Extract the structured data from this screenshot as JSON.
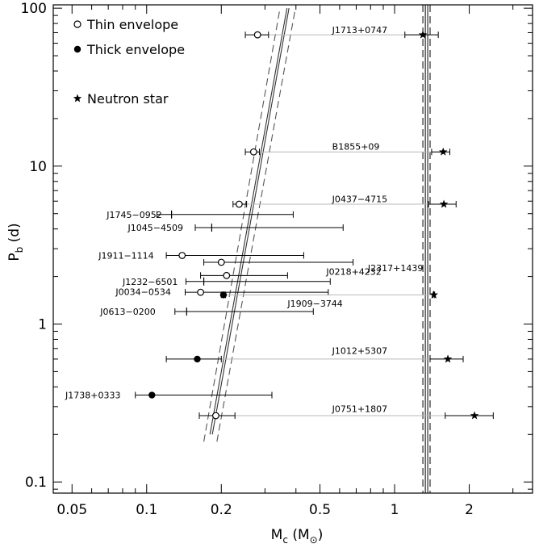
{
  "chart_data": {
    "type": "scatter",
    "xscale": "log",
    "yscale": "log",
    "xlim": [
      0.042,
      3.6
    ],
    "ylim": [
      0.085,
      105
    ],
    "xlabel": {
      "main": "M",
      "sub": "c",
      "unit_open": "(M",
      "unit_sub": "⊙",
      "unit_close": ")"
    },
    "ylabel": {
      "main": "P",
      "sub": "b",
      "unit": "(d)"
    },
    "xticks": [
      {
        "value": 0.05,
        "label": "0.05"
      },
      {
        "value": 0.1,
        "label": "0.1"
      },
      {
        "value": 0.2,
        "label": "0.2"
      },
      {
        "value": 0.5,
        "label": "0.5"
      },
      {
        "value": 1,
        "label": "1"
      },
      {
        "value": 2,
        "label": "2"
      }
    ],
    "yticks": [
      {
        "value": 0.1,
        "label": "0.1"
      },
      {
        "value": 1,
        "label": "1"
      },
      {
        "value": 10,
        "label": "10"
      },
      {
        "value": 100,
        "label": "100"
      }
    ],
    "legend": [
      {
        "symbol": "open-circle",
        "label": "Thin envelope"
      },
      {
        "symbol": "filled-circle",
        "label": "Thick envelope"
      },
      {
        "symbol": "star",
        "label": "Neutron star"
      }
    ],
    "relation_curves": [
      {
        "style": "solid",
        "points": [
          [
            0.18,
            0.2
          ],
          [
            0.368,
            100
          ]
        ]
      },
      {
        "style": "solid",
        "points": [
          [
            0.184,
            0.2
          ],
          [
            0.375,
            100
          ]
        ]
      },
      {
        "style": "dashed",
        "points": [
          [
            0.17,
            0.18
          ],
          [
            0.345,
            100
          ]
        ]
      },
      {
        "style": "dashed",
        "points": [
          [
            0.192,
            0.18
          ],
          [
            0.398,
            100
          ]
        ]
      }
    ],
    "ns_mass_lines": [
      {
        "style": "solid",
        "value": 1.33
      },
      {
        "style": "solid",
        "value": 1.36
      },
      {
        "style": "dashed",
        "value": 1.3
      },
      {
        "style": "dashed",
        "value": 1.39
      }
    ],
    "systems": [
      {
        "name": "J1713+0747",
        "pb": 67.8,
        "mc": 0.28,
        "mc_err": [
          0.25,
          0.31
        ],
        "marker": "open-circle",
        "ns_mass": 1.3,
        "ns_err": [
          1.1,
          1.5
        ],
        "label_mc": 0.56,
        "label_pb": 73
      },
      {
        "name": "B1855+09",
        "pb": 12.3,
        "mc": 0.27,
        "mc_err": [
          0.25,
          0.285
        ],
        "marker": "open-circle",
        "ns_mass": 1.57,
        "ns_err": [
          1.41,
          1.67
        ],
        "label_mc": 0.56,
        "label_pb": 13.3
      },
      {
        "name": "J0437−4715",
        "pb": 5.74,
        "mc": 0.236,
        "mc_err": [
          0.223,
          0.253
        ],
        "marker": "open-circle",
        "ns_mass": 1.58,
        "ns_err": [
          1.37,
          1.77
        ],
        "label_mc": 0.56,
        "label_pb": 6.2
      },
      {
        "name": "J1745−0952",
        "pb": 4.94,
        "mc": 0.126,
        "mc_err": [
          0.11,
          0.39
        ],
        "marker": "plus",
        "label_mc": 0.069,
        "label_pb": 4.94
      },
      {
        "name": "J1045−4509",
        "pb": 4.08,
        "mc": 0.183,
        "mc_err": [
          0.157,
          0.62
        ],
        "marker": "plus",
        "label_mc": 0.084,
        "label_pb": 4.08
      },
      {
        "name": "J1911−1114",
        "pb": 2.72,
        "mc": 0.139,
        "mc_err": [
          0.12,
          0.43
        ],
        "marker": "open-circle",
        "label_mc": 0.064,
        "label_pb": 2.72
      },
      {
        "name": "J2317+1439",
        "pb": 2.46,
        "mc": 0.2,
        "mc_err": [
          0.17,
          0.68
        ],
        "marker": "open-circle",
        "label_mc": 0.78,
        "label_pb": 2.27
      },
      {
        "name": "J0218+4232",
        "pb": 2.03,
        "mc": 0.21,
        "mc_err": [
          0.165,
          0.37
        ],
        "marker": "open-circle",
        "label_mc": 0.53,
        "label_pb": 2.15
      },
      {
        "name": "J1232−6501",
        "pb": 1.86,
        "mc": 0.17,
        "mc_err": [
          0.144,
          0.55
        ],
        "marker": "plus",
        "label_mc": 0.08,
        "label_pb": 1.86
      },
      {
        "name": "J0034−0534",
        "pb": 1.59,
        "mc": 0.165,
        "mc_err": [
          0.143,
          0.54
        ],
        "marker": "open-circle",
        "label_mc": 0.075,
        "label_pb": 1.6
      },
      {
        "name": "J1909−3744",
        "pb": 1.53,
        "mc": 0.204,
        "mc_err": [
          0.2,
          0.208
        ],
        "marker": "filled-circle",
        "ns_mass": 1.44,
        "ns_err": [
          1.43,
          1.45
        ],
        "label_mc": 0.37,
        "label_pb": 1.35
      },
      {
        "name": "J0613−0200",
        "pb": 1.2,
        "mc": 0.145,
        "mc_err": [
          0.13,
          0.47
        ],
        "marker": "plus",
        "label_mc": 0.065,
        "label_pb": 1.2
      },
      {
        "name": "J1012+5307",
        "pb": 0.6,
        "mc": 0.16,
        "mc_err": [
          0.12,
          0.2
        ],
        "marker": "filled-circle",
        "ns_mass": 1.64,
        "ns_err": [
          1.39,
          1.89
        ],
        "label_mc": 0.56,
        "label_pb": 0.68
      },
      {
        "name": "J1738+0333",
        "pb": 0.355,
        "mc": 0.105,
        "mc_err": [
          0.09,
          0.32
        ],
        "marker": "filled-circle",
        "label_mc": 0.047,
        "label_pb": 0.355
      },
      {
        "name": "J0751+1807",
        "pb": 0.263,
        "mc": 0.19,
        "mc_err": [
          0.163,
          0.227
        ],
        "marker": "open-circle",
        "ns_mass": 2.1,
        "ns_err": [
          1.6,
          2.5
        ],
        "label_mc": 0.56,
        "label_pb": 0.29
      }
    ]
  }
}
